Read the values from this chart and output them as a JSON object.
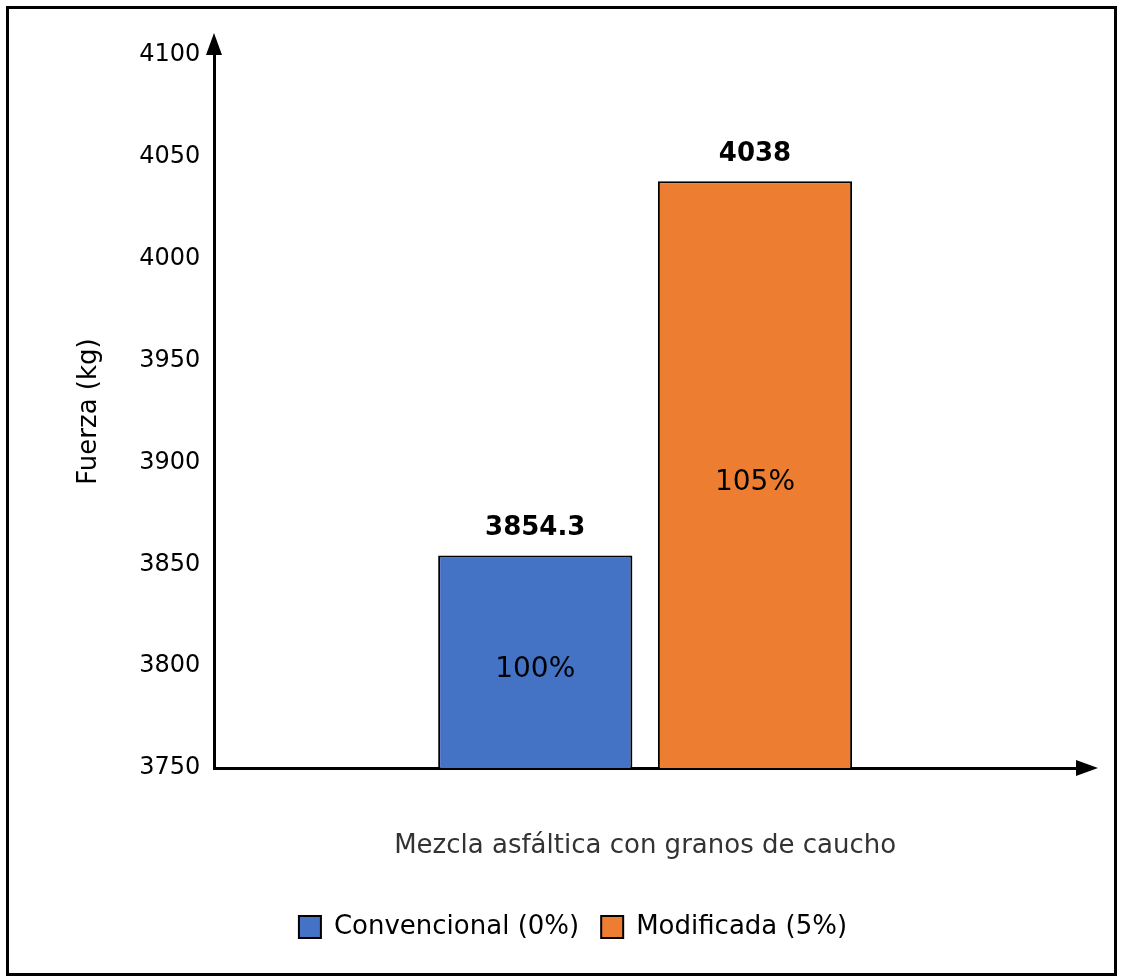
{
  "chart_data": {
    "type": "bar",
    "xlabel": "Mezcla asfáltica con granos de caucho",
    "ylabel": "Fuerza (kg)",
    "categories": [
      null
    ],
    "series": [
      {
        "name": "Convencional (0%)",
        "color": "#4472c4",
        "values": [
          3854.3
        ]
      },
      {
        "name": "Modificada (5%)",
        "color": "#ed7d31",
        "values": [
          4038
        ]
      }
    ],
    "ylim": [
      3750,
      4100
    ],
    "yticks": [
      3750,
      3800,
      3850,
      3900,
      3950,
      4000,
      4050,
      4100
    ],
    "grid": false,
    "legend": "bottom",
    "data_labels": true,
    "annotations": [
      "100%",
      "105%"
    ]
  }
}
